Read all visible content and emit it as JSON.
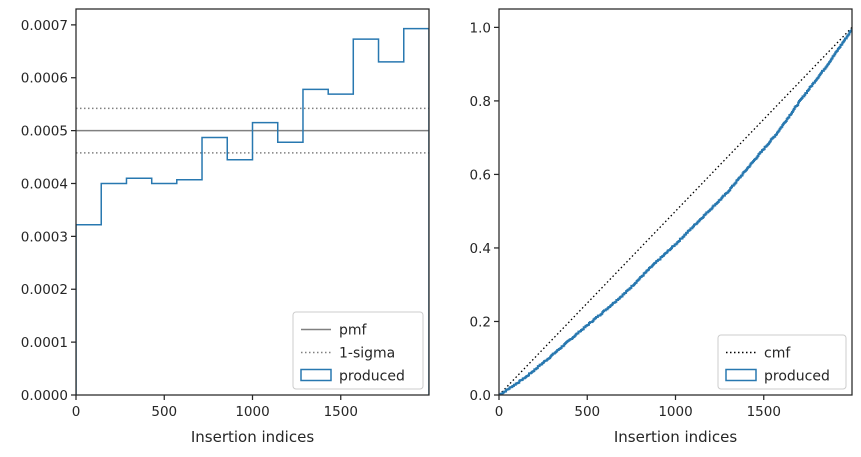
{
  "chart_data": [
    {
      "type": "histogram-step",
      "xlabel": "Insertion indices",
      "ylabel": "",
      "xlim": [
        0,
        2000
      ],
      "ylim": [
        0,
        0.00073
      ],
      "x_ticks": [
        0,
        500,
        1000,
        1500
      ],
      "x_tick_labels": [
        "0",
        "500",
        "1000",
        "1500"
      ],
      "y_ticks": [
        0,
        0.0001,
        0.0002,
        0.0003,
        0.0004,
        0.0005,
        0.0006,
        0.0007
      ],
      "y_tick_labels": [
        "0.0000",
        "0.0001",
        "0.0002",
        "0.0003",
        "0.0004",
        "0.0005",
        "0.0006",
        "0.0007"
      ],
      "reference_lines": {
        "pmf": 0.0005,
        "sigma_upper": 0.000542,
        "sigma_lower": 0.000458
      },
      "bin_edges": [
        0,
        143,
        286,
        429,
        571,
        714,
        857,
        1000,
        1143,
        1286,
        1429,
        1571,
        1714,
        1857,
        2000
      ],
      "series": [
        {
          "name": "produced",
          "values": [
            0.000322,
            0.0004,
            0.00041,
            0.0004,
            0.000407,
            0.000487,
            0.000445,
            0.000515,
            0.000478,
            0.000578,
            0.000569,
            0.000673,
            0.00063,
            0.000693
          ]
        }
      ],
      "legend": {
        "placement": "lower-right",
        "entries": [
          {
            "label": "pmf",
            "color": "#808080",
            "style": "solid"
          },
          {
            "label": "1-sigma",
            "color": "#808080",
            "style": "dotted"
          },
          {
            "label": "produced",
            "color": "#2878b0",
            "style": "patch"
          }
        ]
      }
    },
    {
      "type": "line",
      "xlabel": "Insertion indices",
      "ylabel": "",
      "xlim": [
        0,
        2000
      ],
      "ylim": [
        0,
        1.05
      ],
      "x_ticks": [
        0,
        500,
        1000,
        1500
      ],
      "x_tick_labels": [
        "0",
        "500",
        "1000",
        "1500"
      ],
      "y_ticks": [
        0,
        0.2,
        0.4,
        0.6,
        0.8,
        1.0
      ],
      "y_tick_labels": [
        "0.0",
        "0.2",
        "0.4",
        "0.6",
        "0.8",
        "1.0"
      ],
      "series": [
        {
          "name": "cmf",
          "x": [
            0,
            2000
          ],
          "values": [
            0,
            1.0
          ],
          "color": "#000000",
          "style": "dotted"
        },
        {
          "name": "produced",
          "x": [
            0,
            143,
            286,
            429,
            571,
            714,
            857,
            1000,
            1143,
            1286,
            1429,
            1571,
            1714,
            1857,
            2000
          ],
          "values": [
            0.0,
            0.046,
            0.103,
            0.162,
            0.219,
            0.278,
            0.347,
            0.411,
            0.48,
            0.548,
            0.63,
            0.711,
            0.807,
            0.897,
            0.996
          ],
          "color": "#2878b0",
          "style": "step"
        }
      ],
      "legend": {
        "placement": "lower-right",
        "entries": [
          {
            "label": "cmf",
            "color": "#000000",
            "style": "dotted"
          },
          {
            "label": "produced",
            "color": "#2878b0",
            "style": "patch"
          }
        ]
      }
    }
  ]
}
